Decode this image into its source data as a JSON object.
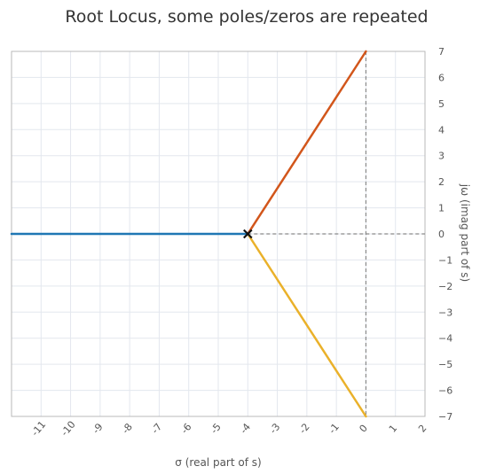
{
  "chart_data": {
    "type": "line",
    "title": "Root Locus, some poles/zeros are repeated",
    "xlabel": "σ (real part of s)",
    "ylabel": "jω (imag part of s)",
    "xlim": [
      -12,
      2
    ],
    "ylim": [
      -7,
      7
    ],
    "x_ticks": [
      "-11",
      "-10",
      "-9",
      "-8",
      "-7",
      "-6",
      "-5",
      "-4",
      "-3",
      "-2",
      "-1",
      "0",
      "1",
      "2"
    ],
    "y_ticks": [
      "7",
      "6",
      "5",
      "4",
      "3",
      "2",
      "1",
      "0",
      "−1",
      "−2",
      "−3",
      "−4",
      "−5",
      "−6",
      "−7"
    ],
    "grid": true,
    "series": [
      {
        "color": "#1f77b4",
        "points": [
          [
            -12,
            0
          ],
          [
            -4,
            0
          ]
        ]
      },
      {
        "color": "#d2561b",
        "points": [
          [
            -4,
            0
          ],
          [
            0,
            7
          ]
        ]
      },
      {
        "color": "#eab12a",
        "points": [
          [
            -4,
            0
          ],
          [
            0,
            -7
          ]
        ]
      }
    ],
    "asymptote_lines": [
      {
        "points": [
          [
            -4,
            0
          ],
          [
            2,
            0
          ]
        ]
      },
      {
        "points": [
          [
            0,
            7
          ],
          [
            0,
            -7
          ]
        ]
      }
    ],
    "poles": [
      [
        -4,
        0
      ]
    ]
  }
}
